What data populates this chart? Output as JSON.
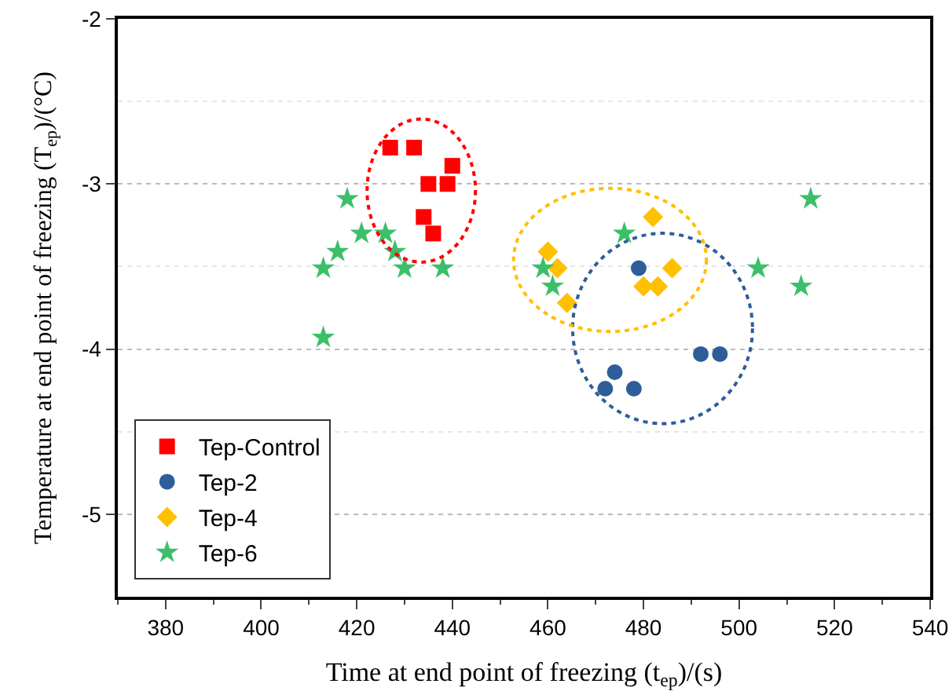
{
  "chart_data": {
    "type": "scatter",
    "xlabel": "Time at end point of freezing (t$_{ep}$)/(s)",
    "ylabel": "Temperature at end point of freezing (T$_{ep}$)/(°C)",
    "xlim": [
      370,
      540
    ],
    "xticks": [
      380,
      400,
      420,
      440,
      460,
      480,
      500,
      520,
      540
    ],
    "ylim": [
      -5.5,
      -2
    ],
    "yticks": [
      -2,
      -3,
      -4,
      -5
    ],
    "grid": "y",
    "legend": "bottom left",
    "series": [
      {
        "name": "Tep-Control",
        "color": "#ff0000",
        "marker": "square",
        "x": [
          427,
          432,
          440,
          435,
          439,
          434,
          436
        ],
        "values": [
          -2.78,
          -2.78,
          -2.89,
          -3.0,
          -3.0,
          -3.2,
          -3.3
        ]
      },
      {
        "name": "Tep-2",
        "color": "#2e5d9a",
        "marker": "circle",
        "x": [
          479,
          492,
          496,
          474,
          472,
          478
        ],
        "values": [
          -3.51,
          -4.03,
          -4.03,
          -4.14,
          -4.24,
          -4.24
        ]
      },
      {
        "name": "Tep-4",
        "color": "#ffc000",
        "marker": "diamond",
        "x": [
          460,
          462,
          482,
          486,
          480,
          483,
          464
        ],
        "values": [
          -3.41,
          -3.51,
          -3.2,
          -3.51,
          -3.62,
          -3.62,
          -3.72
        ]
      },
      {
        "name": "Tep-6",
        "color": "#3cbf6a",
        "marker": "star",
        "x": [
          418,
          421,
          426,
          416,
          428,
          413,
          430,
          438,
          413,
          476,
          459,
          461,
          515,
          504,
          513
        ],
        "values": [
          -3.09,
          -3.3,
          -3.3,
          -3.41,
          -3.41,
          -3.51,
          -3.51,
          -3.51,
          -3.93,
          -3.3,
          -3.51,
          -3.62,
          -3.09,
          -3.51,
          -3.62
        ]
      }
    ]
  }
}
